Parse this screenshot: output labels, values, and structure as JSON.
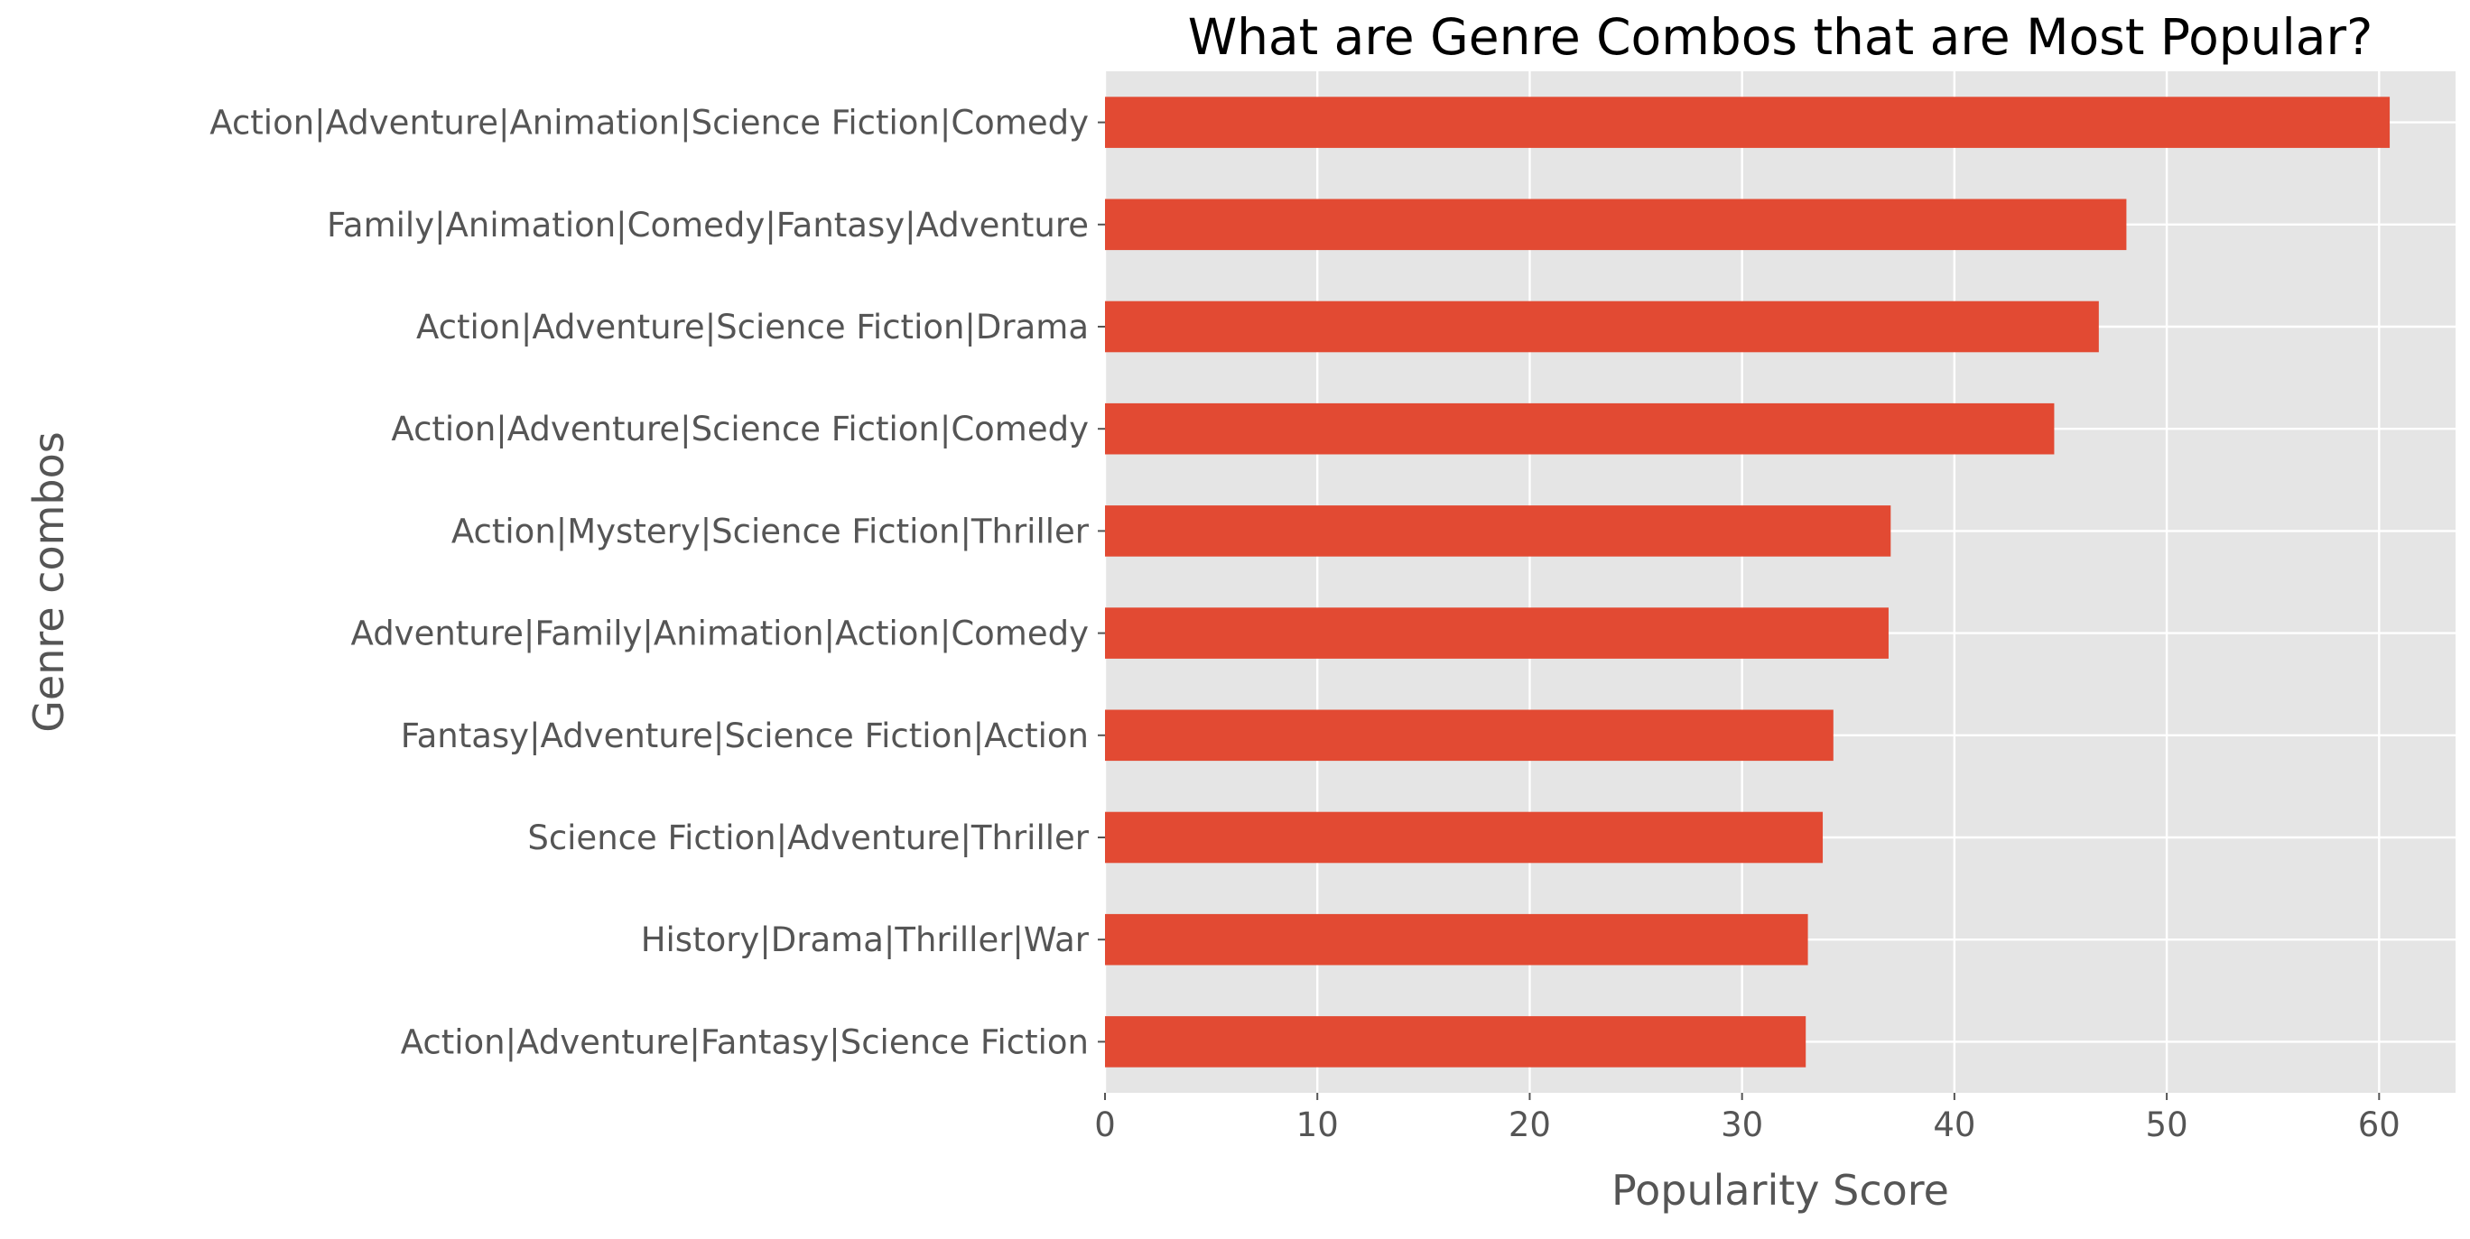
{
  "chart_data": {
    "type": "bar",
    "orientation": "horizontal",
    "title": "What are Genre Combos that are Most Popular?",
    "xlabel": "Popularity Score",
    "ylabel": "Genre combos",
    "xlim": [
      0,
      63.6
    ],
    "xticks": [
      0,
      10,
      20,
      30,
      40,
      50,
      60
    ],
    "xtick_labels": [
      "0",
      "10",
      "20",
      "30",
      "40",
      "50",
      "60"
    ],
    "categories": [
      "Action|Adventure|Fantasy|Science Fiction",
      "History|Drama|Thriller|War",
      "Science Fiction|Adventure|Thriller",
      "Fantasy|Adventure|Science Fiction|Action",
      "Adventure|Family|Animation|Action|Comedy",
      "Action|Mystery|Science Fiction|Thriller",
      "Action|Adventure|Science Fiction|Comedy",
      "Action|Adventure|Science Fiction|Drama",
      "Family|Animation|Comedy|Fantasy|Adventure",
      "Action|Adventure|Animation|Science Fiction|Comedy"
    ],
    "values": [
      33.0,
      33.1,
      33.8,
      34.3,
      36.9,
      37.0,
      44.7,
      46.8,
      48.1,
      60.5
    ],
    "grid": true,
    "legend": false,
    "style": "ggplot",
    "colors": {
      "bar": "#E24A33",
      "plot_background": "#E5E5E5",
      "grid": "#FFFFFF",
      "tick_text": "#555555",
      "title_text": "#000000",
      "figure_background": "#FFFFFF"
    }
  }
}
